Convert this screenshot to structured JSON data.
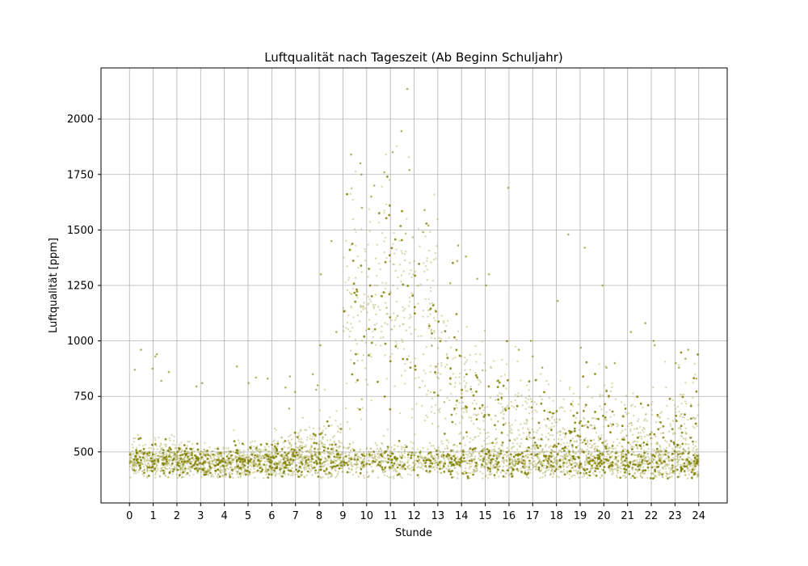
{
  "chart_data": {
    "type": "scatter",
    "title": "Luftqualität nach Tageszeit (Ab Beginn Schuljahr)",
    "xlabel": "Stunde",
    "ylabel": "Luftqualität [ppm]",
    "xlim": [
      -1.2,
      25.2
    ],
    "ylim": [
      270,
      2230
    ],
    "xticks": [
      0,
      1,
      2,
      3,
      4,
      5,
      6,
      7,
      8,
      9,
      10,
      11,
      12,
      13,
      14,
      15,
      16,
      17,
      18,
      19,
      20,
      21,
      22,
      23,
      24
    ],
    "yticks": [
      500,
      750,
      1000,
      1250,
      1500,
      1750,
      2000
    ],
    "grid": true,
    "point_color": "#808000",
    "series": [
      {
        "values_by_hour": [
          {
            "hour": 0,
            "typical": 465,
            "spread": 40,
            "high": [
              875,
              870,
              960
            ]
          },
          {
            "hour": 1,
            "typical": 470,
            "spread": 45,
            "high": [
              930,
              940,
              860,
              820
            ]
          },
          {
            "hour": 2,
            "typical": 460,
            "spread": 40,
            "high": [
              795
            ]
          },
          {
            "hour": 3,
            "typical": 455,
            "spread": 35,
            "high": [
              810
            ]
          },
          {
            "hour": 4,
            "typical": 450,
            "spread": 35,
            "high": [
              885
            ]
          },
          {
            "hour": 5,
            "typical": 465,
            "spread": 40,
            "high": [
              835,
              810,
              830
            ]
          },
          {
            "hour": 6,
            "typical": 480,
            "spread": 50,
            "high": [
              840,
              790,
              770,
              695
            ]
          },
          {
            "hour": 7,
            "typical": 500,
            "spread": 60,
            "high": [
              850,
              780,
              800
            ]
          },
          {
            "hour": 8,
            "typical": 520,
            "spread": 80,
            "high": [
              980,
              1040,
              1300,
              1450
            ]
          },
          {
            "hour": 9,
            "typical": 1150,
            "spread": 250,
            "high": [
              1840,
              1800,
              1750,
              1600
            ]
          },
          {
            "hour": 10,
            "typical": 1200,
            "spread": 260,
            "high": [
              1760,
              1700,
              1650
            ]
          },
          {
            "hour": 11,
            "typical": 1150,
            "spread": 260,
            "high": [
              2135,
              1945,
              1850,
              1770
            ]
          },
          {
            "hour": 12,
            "typical": 1000,
            "spread": 250,
            "high": [
              1590,
              1520,
              1490
            ]
          },
          {
            "hour": 13,
            "typical": 800,
            "spread": 200,
            "high": [
              1430,
              1360,
              1260
            ]
          },
          {
            "hour": 14,
            "typical": 700,
            "spread": 180,
            "high": [
              1380,
              1280
            ]
          },
          {
            "hour": 15,
            "typical": 650,
            "spread": 170,
            "high": [
              1690,
              1300,
              1250
            ]
          },
          {
            "hour": 16,
            "typical": 620,
            "spread": 150,
            "high": [
              1000,
              960
            ]
          },
          {
            "hour": 17,
            "typical": 580,
            "spread": 130,
            "high": [
              930,
              880
            ]
          },
          {
            "hour": 18,
            "typical": 560,
            "spread": 120,
            "high": [
              1480,
              1180
            ]
          },
          {
            "hour": 19,
            "typical": 560,
            "spread": 130,
            "high": [
              1420,
              1250,
              970
            ]
          },
          {
            "hour": 20,
            "typical": 560,
            "spread": 130,
            "high": [
              900,
              880
            ]
          },
          {
            "hour": 21,
            "typical": 540,
            "spread": 120,
            "high": [
              1040,
              1080
            ]
          },
          {
            "hour": 22,
            "typical": 540,
            "spread": 120,
            "high": [
              1000,
              980
            ]
          },
          {
            "hour": 23,
            "typical": 560,
            "spread": 140,
            "high": [
              960,
              920,
              900,
              880
            ]
          },
          {
            "hour": 24,
            "typical": 460,
            "spread": 45,
            "high": [
              830
            ]
          }
        ]
      }
    ]
  }
}
